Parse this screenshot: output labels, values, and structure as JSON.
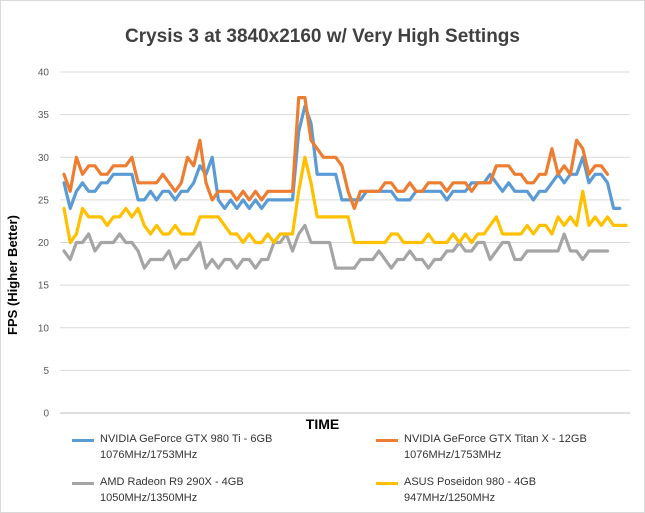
{
  "chart_data": {
    "type": "line",
    "title": "Crysis 3 at 3840x2160 w/ Very High Settings",
    "xlabel": "TIME",
    "ylabel": "FPS (Higher Better)",
    "ylim": [
      0,
      40
    ],
    "yticks": [
      0,
      5,
      10,
      15,
      20,
      25,
      30,
      35,
      40
    ],
    "grid": true,
    "legend_position": "bottom",
    "series": [
      {
        "name": "NVIDIA GeForce GTX 980 Ti - 6GB\n1076MHz/1753MHz",
        "color": "#5b9bd5",
        "values": [
          27,
          24,
          26,
          27,
          26,
          26,
          27,
          27,
          28,
          28,
          28,
          28,
          25,
          25,
          26,
          25,
          26,
          26,
          25,
          26,
          26,
          27,
          29,
          28,
          30,
          25,
          24,
          25,
          24,
          25,
          24,
          25,
          24,
          25,
          25,
          25,
          25,
          25,
          33,
          36,
          34,
          28,
          28,
          28,
          28,
          25,
          25,
          25,
          25,
          26,
          26,
          26,
          26,
          26,
          25,
          25,
          25,
          26,
          26,
          26,
          26,
          26,
          25,
          26,
          26,
          26,
          27,
          27,
          27,
          28,
          27,
          26,
          27,
          26,
          26,
          26,
          25,
          26,
          26,
          27,
          28,
          27,
          28,
          28,
          30,
          27,
          28,
          28,
          27,
          24,
          24
        ]
      },
      {
        "name": "NVIDIA GeForce GTX Titan X - 12GB\n1076MHz/1753MHz",
        "color": "#ed7d31",
        "values": [
          28,
          26,
          30,
          28,
          29,
          29,
          28,
          28,
          29,
          29,
          29,
          30,
          27,
          27,
          27,
          27,
          28,
          27,
          26,
          27,
          30,
          29,
          32,
          27,
          25,
          26,
          26,
          26,
          25,
          26,
          25,
          26,
          25,
          26,
          26,
          26,
          26,
          26,
          37,
          37,
          32,
          31,
          30,
          30,
          30,
          29,
          26,
          24,
          26,
          26,
          26,
          26,
          27,
          27,
          26,
          26,
          27,
          26,
          26,
          27,
          27,
          27,
          26,
          27,
          27,
          27,
          26,
          27,
          27,
          27,
          29,
          29,
          29,
          28,
          28,
          27,
          27,
          28,
          28,
          31,
          28,
          29,
          28,
          32,
          31,
          28,
          29,
          29,
          28
        ]
      },
      {
        "name": "AMD Radeon R9 290X - 4GB\n1050MHz/1350MHz",
        "color": "#a5a5a5",
        "values": [
          19,
          18,
          20,
          20,
          21,
          19,
          20,
          20,
          20,
          21,
          20,
          20,
          19,
          17,
          18,
          18,
          18,
          19,
          17,
          18,
          18,
          19,
          20,
          17,
          18,
          17,
          18,
          18,
          17,
          18,
          18,
          17,
          18,
          18,
          20,
          20,
          21,
          19,
          21,
          22,
          20,
          20,
          20,
          20,
          17,
          17,
          17,
          17,
          18,
          18,
          18,
          19,
          18,
          17,
          18,
          18,
          19,
          18,
          18,
          17,
          18,
          18,
          19,
          19,
          20,
          19,
          19,
          20,
          20,
          18,
          19,
          20,
          20,
          18,
          18,
          19,
          19,
          19,
          19,
          19,
          19,
          21,
          19,
          19,
          18,
          19,
          19,
          19,
          19
        ]
      },
      {
        "name": "ASUS Poseidon 980 - 4GB\n947MHz/1250MHz",
        "color": "#ffc000",
        "values": [
          24,
          20,
          21,
          24,
          23,
          23,
          23,
          22,
          23,
          23,
          24,
          23,
          24,
          22,
          21,
          22,
          21,
          21,
          22,
          21,
          21,
          21,
          23,
          23,
          23,
          23,
          22,
          21,
          21,
          20,
          21,
          20,
          20,
          21,
          20,
          21,
          21,
          21,
          26,
          30,
          27,
          23,
          23,
          23,
          23,
          23,
          23,
          20,
          20,
          20,
          20,
          20,
          20,
          21,
          21,
          20,
          20,
          20,
          20,
          21,
          20,
          20,
          20,
          21,
          20,
          21,
          20,
          21,
          21,
          22,
          23,
          21,
          21,
          21,
          21,
          22,
          21,
          22,
          22,
          21,
          23,
          22,
          23,
          22,
          26,
          22,
          23,
          22,
          23,
          22,
          22,
          22
        ]
      }
    ]
  }
}
